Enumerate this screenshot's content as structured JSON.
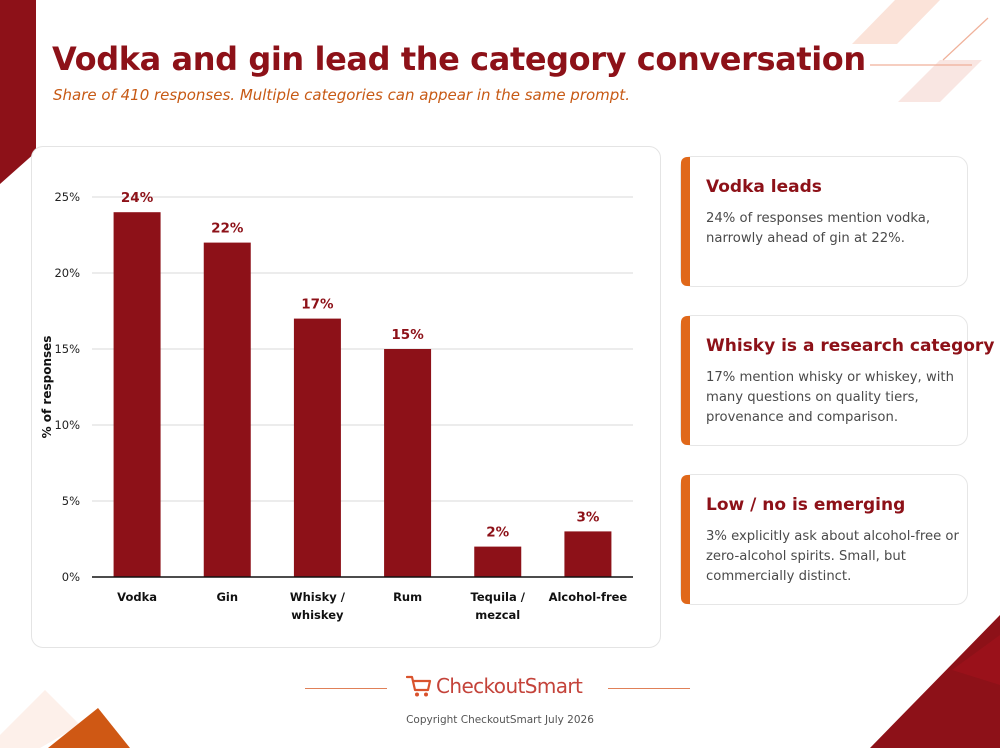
{
  "header": {
    "title": "Vodka and gin lead the category conversation",
    "subtitle": "Share of 410 responses. Multiple categories can appear in the same prompt."
  },
  "chart_data": {
    "type": "bar",
    "categories": [
      [
        "Vodka"
      ],
      [
        "Gin"
      ],
      [
        "Whisky /",
        "whiskey"
      ],
      [
        "Rum"
      ],
      [
        "Tequila /",
        "mezcal"
      ],
      [
        "Alcohol-free"
      ]
    ],
    "values": [
      24,
      22,
      17,
      15,
      2,
      3
    ],
    "value_labels": [
      "24%",
      "22%",
      "17%",
      "15%",
      "2%",
      "3%"
    ],
    "ylabel": "% of responses",
    "ylim": [
      0,
      25
    ],
    "yticks": [
      0,
      5,
      10,
      15,
      20,
      25
    ],
    "ytick_labels": [
      "0%",
      "5%",
      "10%",
      "15%",
      "20%",
      "25%"
    ],
    "grid": true,
    "bar_color": "#8d1118",
    "label_color": "#8d1118"
  },
  "insights": [
    {
      "title": "Vodka leads",
      "text": "24% of responses mention vodka, narrowly ahead of gin at 22%."
    },
    {
      "title": "Whisky is a research category",
      "text": "17% mention whisky or whiskey, with many questions on quality tiers, provenance and comparison."
    },
    {
      "title": "Low / no is emerging",
      "text": "3% explicitly ask about alcohol-free or zero-alcohol spirits. Small, but commercially distinct."
    }
  ],
  "footer": {
    "brand": "CheckoutSmart",
    "brand_icon": "shopping-cart-icon",
    "copyright": "Copyright CheckoutSmart July 2026"
  },
  "colors": {
    "primary": "#8d1118",
    "accent": "#e0681a",
    "subtitle": "#c75a15"
  }
}
